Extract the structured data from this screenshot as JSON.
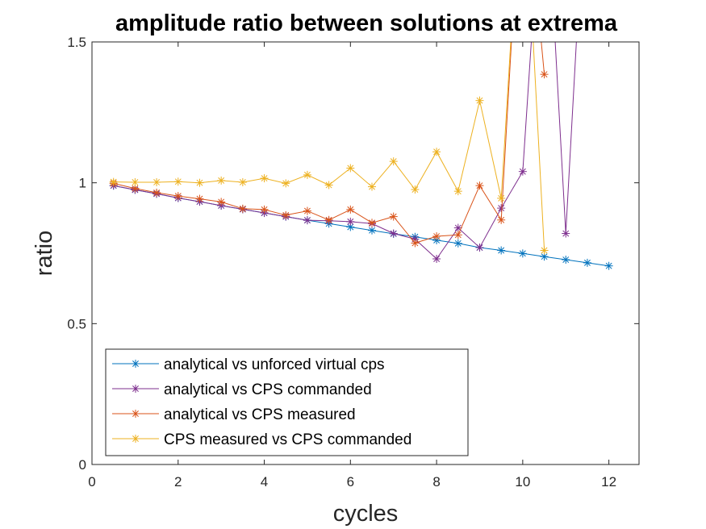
{
  "chart_data": {
    "type": "line",
    "title": "amplitude ratio between solutions at extrema",
    "xlabel": "cycles",
    "ylabel": "ratio",
    "xlim": [
      0,
      12.7
    ],
    "ylim": [
      0,
      1.5
    ],
    "xticks": [
      "0",
      "2",
      "4",
      "6",
      "8",
      "10",
      "12"
    ],
    "yticks": [
      "0",
      "0.5",
      "1",
      "1.5"
    ],
    "grid": false,
    "legend_position": "bottom-left",
    "series": [
      {
        "name": "analytical vs unforced virtual cps",
        "color": "#0072BD",
        "marker": "asterisk",
        "x": [
          0.5,
          1,
          1.5,
          2,
          2.5,
          3,
          3.5,
          4,
          4.5,
          5,
          5.5,
          6,
          6.5,
          7,
          7.5,
          8,
          8.5,
          9,
          9.5,
          10,
          10.5,
          11,
          11.5,
          12
        ],
        "y": [
          0.99,
          0.975,
          0.961,
          0.946,
          0.933,
          0.919,
          0.906,
          0.893,
          0.88,
          0.867,
          0.855,
          0.843,
          0.831,
          0.819,
          0.808,
          0.796,
          0.785,
          0.77,
          0.76,
          0.749,
          0.738,
          0.727,
          0.716,
          0.705
        ]
      },
      {
        "name": "analytical vs CPS commanded",
        "color": "#7E2F8E",
        "marker": "asterisk",
        "x": [
          0.5,
          1,
          1.5,
          2,
          2.5,
          3,
          3.5,
          4,
          4.5,
          5,
          5.5,
          6,
          6.5,
          7,
          7.5,
          8,
          8.5,
          9,
          9.5,
          10,
          10.5,
          11,
          11.5
        ],
        "y": [
          0.99,
          0.975,
          0.961,
          0.946,
          0.933,
          0.919,
          0.906,
          0.893,
          0.88,
          0.867,
          0.865,
          0.862,
          0.855,
          0.82,
          0.8,
          0.73,
          0.84,
          0.77,
          0.91,
          1.04,
          2.2,
          0.82,
          2.2
        ]
      },
      {
        "name": "analytical vs CPS measured",
        "color": "#D95319",
        "marker": "asterisk",
        "x": [
          0.5,
          1,
          1.5,
          2,
          2.5,
          3,
          3.5,
          4,
          4.5,
          5,
          5.5,
          6,
          6.5,
          7,
          7.5,
          8,
          8.5,
          9,
          9.5,
          10,
          10.5
        ],
        "y": [
          0.998,
          0.98,
          0.965,
          0.953,
          0.943,
          0.932,
          0.908,
          0.905,
          0.885,
          0.9,
          0.868,
          0.905,
          0.858,
          0.88,
          0.786,
          0.81,
          0.815,
          0.99,
          0.868,
          2.2,
          1.385
        ]
      },
      {
        "name": "CPS measured vs CPS commanded",
        "color": "#EDB120",
        "marker": "asterisk",
        "x": [
          0.5,
          1,
          1.5,
          2,
          2.5,
          3,
          3.5,
          4,
          4.5,
          5,
          5.5,
          6,
          6.5,
          7,
          7.5,
          8,
          8.5,
          9,
          9.5,
          10,
          10.5
        ],
        "y": [
          1.003,
          1.002,
          1.002,
          1.004,
          1.0,
          1.008,
          1.002,
          1.016,
          0.998,
          1.028,
          0.992,
          1.052,
          0.986,
          1.076,
          0.976,
          1.11,
          0.97,
          1.292,
          0.945,
          2.2,
          0.76
        ]
      }
    ]
  }
}
